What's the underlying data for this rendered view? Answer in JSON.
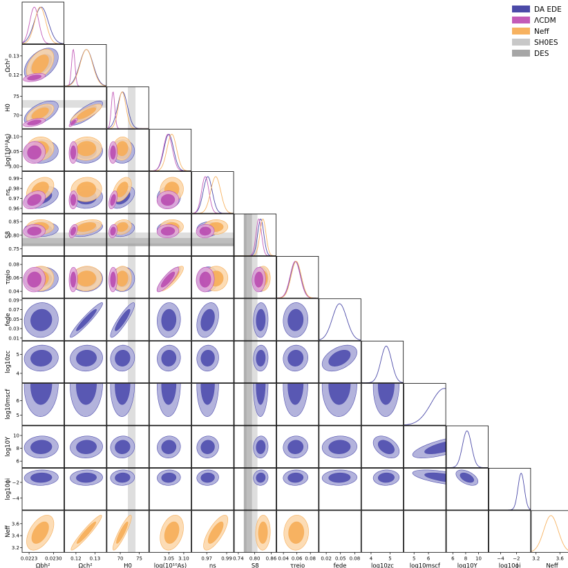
{
  "chart_data": {
    "type": "corner",
    "colors": {
      "DA EDE": "#4b4aa8",
      "ΛCDM": "#c35bb8",
      "Neff": "#f7b260",
      "SH0ES": "#c8c8c8",
      "DES": "#a6a6a6"
    },
    "legend": [
      {
        "label": "DA EDE",
        "color": "#4b4aa8"
      },
      {
        "label": "ΛCDM",
        "color": "#c35bb8"
      },
      {
        "label": "Neff",
        "color": "#f7b260"
      },
      {
        "label": "SH0ES",
        "color": "#c8c8c8"
      },
      {
        "label": "DES",
        "color": "#a6a6a6"
      }
    ],
    "parameters": [
      {
        "key": "omega_b",
        "label": "Ωbh²",
        "ylabel": "",
        "range": [
          0.0221,
          0.0233
        ],
        "xticks": [
          0.0223,
          0.023
        ],
        "xtick_labels": [
          "0.0223",
          "0.0230"
        ],
        "yticks": [],
        "ytick_labels": [],
        "sets": {
          "DA EDE": [
            0.02265,
            0.0002
          ],
          "ΛCDM": [
            0.02245,
            0.00013
          ],
          "Neff": [
            0.02262,
            0.00016
          ]
        }
      },
      {
        "key": "omega_cdm",
        "label": "Ωch²",
        "ylabel": "Ωch²",
        "range": [
          0.114,
          0.136
        ],
        "xticks": [
          0.12,
          0.13
        ],
        "xtick_labels": [
          "0.12",
          "0.13"
        ],
        "yticks": [
          0.12,
          0.13
        ],
        "ytick_labels": [
          "0.12",
          "0.13"
        ],
        "sets": {
          "DA EDE": [
            0.1255,
            0.0035
          ],
          "ΛCDM": [
            0.1186,
            0.0009
          ],
          "Neff": [
            0.1255,
            0.0033
          ]
        }
      },
      {
        "key": "H0",
        "label": "H0",
        "ylabel": "H0",
        "range": [
          66.5,
          77.5
        ],
        "xticks": [
          70,
          75
        ],
        "xtick_labels": [
          "70",
          "75"
        ],
        "yticks": [
          70,
          75
        ],
        "ytick_labels": [
          "70",
          "75"
        ],
        "sets": {
          "DA EDE": [
            70.6,
            1.3
          ],
          "ΛCDM": [
            68.1,
            0.45
          ],
          "Neff": [
            70.5,
            1.0
          ]
        }
      },
      {
        "key": "logA",
        "label": "log(10¹⁰As)",
        "ylabel": "log(10¹⁰As)",
        "range": [
          2.985,
          3.125
        ],
        "xticks": [
          3.05,
          3.1
        ],
        "xtick_labels": [
          "3.05",
          "3.10"
        ],
        "yticks": [
          3.0,
          3.05,
          3.1
        ],
        "ytick_labels": [
          "3.00",
          "3.05",
          "3.10"
        ],
        "sets": {
          "DA EDE": [
            3.05,
            0.016
          ],
          "ΛCDM": [
            3.047,
            0.015
          ],
          "Neff": [
            3.06,
            0.016
          ]
        }
      },
      {
        "key": "n_s",
        "label": "ns",
        "ylabel": "ns",
        "range": [
          0.955,
          0.997
        ],
        "xticks": [
          0.97,
          0.99
        ],
        "xtick_labels": [
          "0.97",
          "0.99"
        ],
        "yticks": [
          0.96,
          0.97,
          0.98,
          0.99
        ],
        "ytick_labels": [
          "0.96",
          "0.97",
          "0.98",
          "0.99"
        ],
        "sets": {
          "DA EDE": [
            0.971,
            0.0045
          ],
          "ΛCDM": [
            0.9685,
            0.0037
          ],
          "Neff": [
            0.979,
            0.005
          ]
        }
      },
      {
        "key": "S8",
        "label": "S8",
        "ylabel": "S8",
        "range": [
          0.725,
          0.878
        ],
        "xticks": [
          0.74,
          0.8,
          0.86
        ],
        "xtick_labels": [
          "0.74",
          "0.80",
          "0.86"
        ],
        "yticks": [
          0.75,
          0.8,
          0.85
        ],
        "ytick_labels": [
          "0.75",
          "0.80",
          "0.85"
        ],
        "sets": {
          "DA EDE": [
            0.822,
            0.011
          ],
          "ΛCDM": [
            0.815,
            0.01
          ],
          "Neff": [
            0.83,
            0.011
          ]
        }
      },
      {
        "key": "tau",
        "label": "τreio",
        "ylabel": "τreio",
        "range": [
          0.03,
          0.092
        ],
        "xticks": [
          0.04,
          0.06,
          0.08
        ],
        "xtick_labels": [
          "0.04",
          "0.06",
          "0.08"
        ],
        "yticks": [
          0.04,
          0.06,
          0.08
        ],
        "ytick_labels": [
          "0.04",
          "0.06",
          "0.08"
        ],
        "sets": {
          "DA EDE": [
            0.058,
            0.0075
          ],
          "ΛCDM": [
            0.0575,
            0.0075
          ],
          "Neff": [
            0.059,
            0.0075
          ]
        }
      },
      {
        "key": "f_ede",
        "label": "fede",
        "ylabel": "fede",
        "range": [
          0.005,
          0.093
        ],
        "xticks": [
          0.02,
          0.05,
          0.08
        ],
        "xtick_labels": [
          "0.02",
          "0.05",
          "0.08"
        ],
        "yticks": [
          0.01,
          0.03,
          0.05,
          0.07,
          0.09
        ],
        "ytick_labels": [
          "0.01",
          "0.03",
          "0.05",
          "0.07",
          "0.09"
        ],
        "sets": {
          "DA EDE": [
            0.048,
            0.015
          ]
        }
      },
      {
        "key": "log10_zc",
        "label": "log10zc",
        "ylabel": "log10zc",
        "range": [
          3.5,
          5.7
        ],
        "xticks": [
          4,
          5
        ],
        "xtick_labels": [
          "4",
          "5"
        ],
        "yticks": [
          4,
          5
        ],
        "ytick_labels": [
          "4",
          "5"
        ],
        "sets": {
          "DA EDE": [
            4.8,
            0.28
          ]
        }
      },
      {
        "key": "log10_mscf",
        "label": "log10mscf",
        "ylabel": "log10mscf",
        "range": [
          4.3,
          7.2
        ],
        "xticks": [
          5,
          6
        ],
        "xtick_labels": [
          "5",
          "6"
        ],
        "yticks": [
          5,
          6
        ],
        "ytick_labels": [
          "5",
          "6"
        ],
        "sets": {
          "DA EDE": [
            7.1,
            0.9
          ]
        }
      },
      {
        "key": "log10_upsilon",
        "label": "log10Υ",
        "ylabel": "log10Υ",
        "range": [
          5.0,
          11.5
        ],
        "xticks": [
          6,
          8,
          10
        ],
        "xtick_labels": [
          "6",
          "8",
          "10"
        ],
        "yticks": [
          6,
          8,
          10
        ],
        "ytick_labels": [
          "6",
          "8",
          "10"
        ],
        "sets": {
          "DA EDE": [
            8.2,
            0.7
          ]
        }
      },
      {
        "key": "log10_phi_i",
        "label": "log10ϕi",
        "ylabel": "log10ϕi",
        "range": [
          -5.5,
          -0.2
        ],
        "xticks": [
          -4,
          -2
        ],
        "xtick_labels": [
          "−4",
          "−2"
        ],
        "yticks": [
          -4,
          -2
        ],
        "ytick_labels": [
          "−4",
          "−2"
        ],
        "sets": {
          "DA EDE": [
            -1.4,
            0.4
          ]
        }
      },
      {
        "key": "N_eff",
        "label": "Neff",
        "ylabel": "Neff",
        "range": [
          3.12,
          3.82
        ],
        "xticks": [
          3.2,
          3.6
        ],
        "xtick_labels": [
          "3.2",
          "3.6"
        ],
        "yticks": [
          3.2,
          3.4,
          3.6
        ],
        "ytick_labels": [
          "3.2",
          "3.4",
          "3.6"
        ],
        "sets": {
          "Neff": [
            3.45,
            0.12
          ]
        }
      }
    ],
    "bands": [
      {
        "name": "SH0ES",
        "param": "H0",
        "range": [
          72.0,
          74.0
        ]
      },
      {
        "name": "DES",
        "param": "S8",
        "range": [
          0.76,
          0.79
        ]
      },
      {
        "name": "SH0ES",
        "param": "S8",
        "range": [
          0.77,
          0.81
        ]
      }
    ]
  }
}
